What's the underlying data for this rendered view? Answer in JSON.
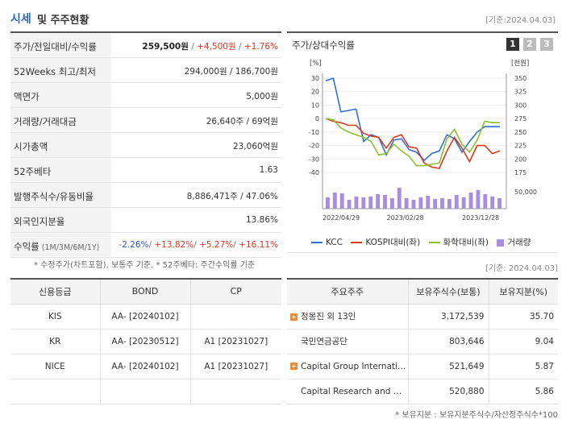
{
  "header": {
    "title_accent": "시세",
    "title_rest": "및 주주현황",
    "date": "[기준:2024.04.03]"
  },
  "price_table": [
    {
      "label": "주가/전일대비/수익률",
      "parts": [
        {
          "t": "259,500원",
          "c": "bold"
        },
        {
          "t": " / ",
          "c": "gray"
        },
        {
          "t": "+4,500원",
          "c": "red"
        },
        {
          "t": " / ",
          "c": "gray"
        },
        {
          "t": "+1.76%",
          "c": "red"
        }
      ]
    },
    {
      "label": "52Weeks 최고/최저",
      "value": "294,000원 / 186,700원"
    },
    {
      "label": "액면가",
      "value": "5,000원"
    },
    {
      "label": "거래량/거래대금",
      "value": "26,640주 / 69억원"
    },
    {
      "label": "시가총액",
      "value": "23,060억원"
    },
    {
      "label": "52주베타",
      "value": "1.63"
    },
    {
      "label": "발행주식수/유동비율",
      "value": "8,886,471주 / 47.06%"
    },
    {
      "label": "외국인지분율",
      "value": "13.86%"
    },
    {
      "label": "수익률",
      "label_sub": "(1M/3M/6M/1Y)",
      "parts": [
        {
          "t": "-2.26%",
          "c": "blue"
        },
        {
          "t": "/ ",
          "c": "gray"
        },
        {
          "t": "+13.82%",
          "c": "red"
        },
        {
          "t": "/ ",
          "c": "gray"
        },
        {
          "t": "+5.27%",
          "c": "red"
        },
        {
          "t": "/ ",
          "c": "gray"
        },
        {
          "t": "+16.11%",
          "c": "red"
        }
      ]
    }
  ],
  "price_note": "* 수정주가(차트포함), 보통주 기준, * 52주베타: 주간수익률 기준",
  "chart_panel": {
    "title": "주가/상대수익률",
    "tabs": [
      "1",
      "2",
      "3"
    ],
    "date": "[기준: 2024.04.03]"
  },
  "chart_data": {
    "type": "line",
    "left_unit": "[%]",
    "right_unit": "[천원]",
    "left_ticks": [
      30,
      20,
      10,
      0,
      -10,
      -20,
      -30,
      -40
    ],
    "right_ticks": [
      350,
      325,
      300,
      275,
      250,
      225,
      200,
      175
    ],
    "ylim_left": [
      -40,
      30
    ],
    "ylim_right": [
      175,
      350
    ],
    "vol_tick": "50,000",
    "x_ticks": [
      "2022/04/29",
      "2023/02/28",
      "2023/12/28"
    ],
    "series": [
      {
        "name": "KCC",
        "color": "#2f6fd6",
        "values": [
          28,
          30,
          5,
          6,
          7,
          -17,
          -12,
          -14,
          -27,
          -16,
          -15,
          -23,
          -25,
          -31,
          -26,
          -24,
          -12,
          -15,
          -25,
          -17,
          -10,
          -6,
          -6,
          -6
        ]
      },
      {
        "name": "KOSPI대비(좌)",
        "color": "#d83a1a",
        "values": [
          0,
          -2,
          -3,
          -5,
          -5,
          -11,
          -13,
          -14,
          -22,
          -14,
          -12,
          -21,
          -22,
          -33,
          -36,
          -37,
          -24,
          -14,
          -22,
          -32,
          -20,
          -20,
          -26,
          -24
        ]
      },
      {
        "name": "화학대비(좌)",
        "color": "#8dbf2a",
        "values": [
          0,
          -1,
          -7,
          -10,
          -12,
          -14,
          -17,
          -27,
          -26,
          -19,
          -24,
          -28,
          -35,
          -35,
          -34,
          -33,
          -15,
          -8,
          -19,
          -25,
          -16,
          -2,
          -3,
          -3
        ]
      }
    ],
    "volume": {
      "name": "거래량",
      "values": [
        14,
        20,
        19,
        11,
        15,
        14,
        15,
        18,
        17,
        13,
        26,
        13,
        11,
        14,
        16,
        12,
        13,
        12,
        17,
        14,
        20,
        23,
        18,
        15,
        13
      ]
    }
  },
  "credit_table": {
    "headers": [
      "신용등급",
      "BOND",
      "CP"
    ],
    "rows": [
      [
        "KIS",
        "AA-  [20240102]",
        ""
      ],
      [
        "KR",
        "AA-  [20230512]",
        "A1  [20231027]"
      ],
      [
        "NICE",
        "AA-  [20240102]",
        "A1  [20231027]"
      ],
      [
        "",
        "",
        ""
      ]
    ]
  },
  "shareholder_table": {
    "headers": [
      "주요주주",
      "보유주식수(보통)",
      "보유지분(%)"
    ],
    "rows": [
      {
        "plus": true,
        "name": "정몽진 외 13인",
        "shares": "3,172,539",
        "pct": "35.70"
      },
      {
        "plus": false,
        "name": "국민연금공단",
        "shares": "803,646",
        "pct": "9.04"
      },
      {
        "plus": true,
        "name": "Capital Group Internati…",
        "shares": "521,649",
        "pct": "5.87"
      },
      {
        "plus": false,
        "name": "Capital Research and …",
        "shares": "520,880",
        "pct": "5.86"
      }
    ]
  },
  "shareholder_note": "* 보유지분 : 보유지분주식수/자산정주식수*100"
}
